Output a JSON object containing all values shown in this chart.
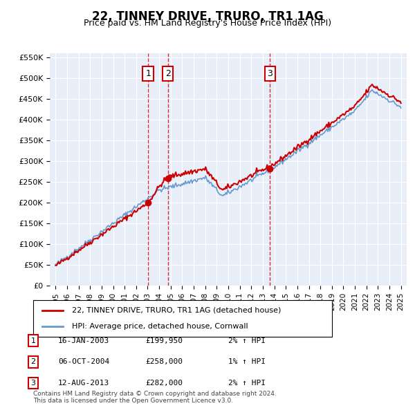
{
  "title": "22, TINNEY DRIVE, TRURO, TR1 1AG",
  "subtitle": "Price paid vs. HM Land Registry's House Price Index (HPI)",
  "ylabel": "",
  "ylim": [
    0,
    560000
  ],
  "yticks": [
    0,
    50000,
    100000,
    150000,
    200000,
    250000,
    300000,
    350000,
    400000,
    450000,
    500000,
    550000
  ],
  "bg_color": "#e8eef8",
  "plot_bg": "#e8eef8",
  "hpi_color": "#6699cc",
  "price_color": "#cc0000",
  "sale_color": "#cc0000",
  "vline_color": "#cc0000",
  "box_color": "#cc0000",
  "legend_line1": "22, TINNEY DRIVE, TRURO, TR1 1AG (detached house)",
  "legend_line2": "HPI: Average price, detached house, Cornwall",
  "footnote": "Contains HM Land Registry data © Crown copyright and database right 2024.\nThis data is licensed under the Open Government Licence v3.0.",
  "sales": [
    {
      "label": "1",
      "date_str": "16-JAN-2003",
      "price": 199950,
      "year": 2003.04,
      "hpi_pct": "2%",
      "dir": "↑"
    },
    {
      "label": "2",
      "date_str": "06-OCT-2004",
      "price": 258000,
      "year": 2004.76,
      "hpi_pct": "1%",
      "dir": "↑"
    },
    {
      "label": "3",
      "date_str": "12-AUG-2013",
      "price": 282000,
      "year": 2013.62,
      "hpi_pct": "2%",
      "dir": "↑"
    }
  ],
  "table_rows": [
    [
      "1",
      "16-JAN-2003",
      "£199,950",
      "2% ↑ HPI"
    ],
    [
      "2",
      "06-OCT-2004",
      "£258,000",
      "1% ↑ HPI"
    ],
    [
      "3",
      "12-AUG-2013",
      "£282,000",
      "2% ↑ HPI"
    ]
  ]
}
